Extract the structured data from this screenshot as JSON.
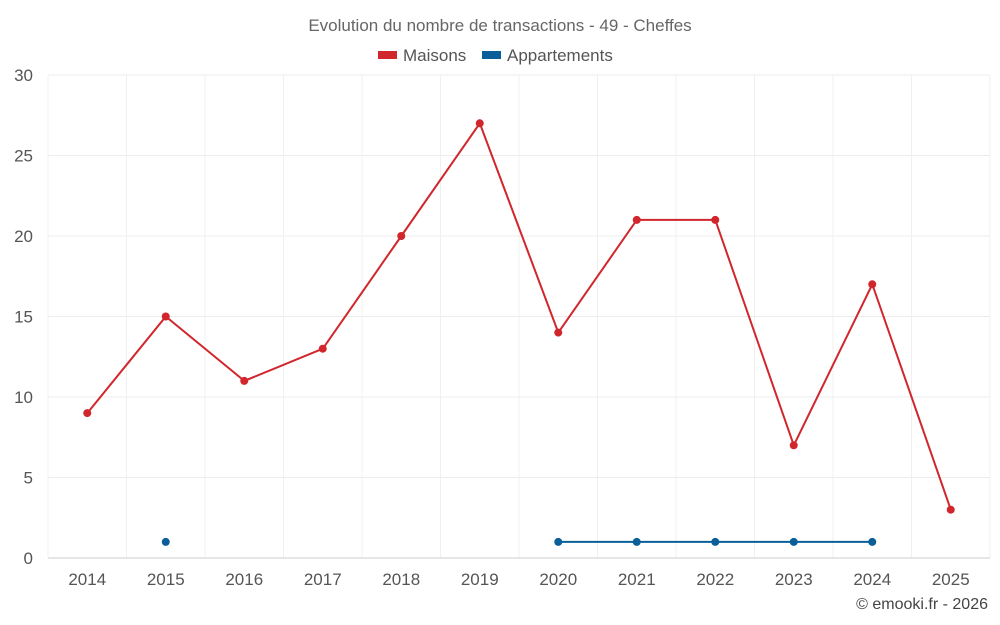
{
  "chart_data": {
    "type": "line",
    "title": "Evolution du nombre de transactions - 49 - Cheffes",
    "categories": [
      "2014",
      "2015",
      "2016",
      "2017",
      "2018",
      "2019",
      "2020",
      "2021",
      "2022",
      "2023",
      "2024",
      "2025"
    ],
    "series": [
      {
        "name": "Maisons",
        "color": "#d0262c",
        "values": [
          9,
          15,
          11,
          13,
          20,
          27,
          14,
          21,
          21,
          7,
          17,
          3
        ]
      },
      {
        "name": "Appartements",
        "color": "#0b5f99",
        "values": [
          null,
          1,
          null,
          null,
          null,
          null,
          1,
          1,
          1,
          1,
          1,
          null
        ]
      }
    ],
    "ylim": [
      0,
      30
    ],
    "yticks": [
      "0",
      "5",
      "10",
      "15",
      "20",
      "25",
      "30"
    ],
    "grid": true,
    "legend_position": "top-center"
  },
  "credit": "© emooki.fr - 2026"
}
